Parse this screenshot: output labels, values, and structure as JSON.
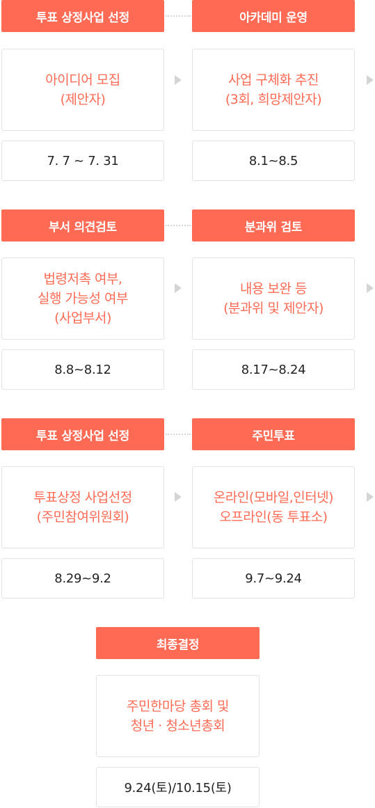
{
  "colors": {
    "accent": "#ff6a55",
    "border": "#e3e3e3",
    "arrow": "#d4d4d4",
    "text": "#222222"
  },
  "rows": [
    {
      "steps": [
        {
          "header": "투표 상정사업 선정",
          "desc": [
            "아이디어 모집",
            "(제안자)"
          ],
          "date": "7. 7 ~ 7. 31"
        },
        {
          "header": "아카데미 운영",
          "desc": [
            "사업 구체화 추진",
            "(3회, 희망제안자)"
          ],
          "date": "8.1~8.5"
        }
      ]
    },
    {
      "steps": [
        {
          "header": "부서 의견검토",
          "desc": [
            "법령저촉 여부,",
            "실행 가능성 여부",
            "(사업부서)"
          ],
          "date": "8.8~8.12"
        },
        {
          "header": "분과위 검토",
          "desc": [
            "내용 보완 등",
            "(분과위 및 제안자)"
          ],
          "date": "8.17~8.24"
        }
      ]
    },
    {
      "steps": [
        {
          "header": "투표 상정사업 선정",
          "desc": [
            "투표상정 사업선정",
            "(주민참여위원회)"
          ],
          "date": "8.29~9.2"
        },
        {
          "header": "주민투표",
          "desc": [
            "온라인(모바일,인터넷)",
            "오프라인(동 투표소)"
          ],
          "date": "9.7~9.24"
        }
      ]
    }
  ],
  "final": {
    "header": "최종결정",
    "desc": [
      "주민한마당 총회 및",
      "청년 · 청소년총회"
    ],
    "date": "9.24(토)/10.15(토)"
  }
}
